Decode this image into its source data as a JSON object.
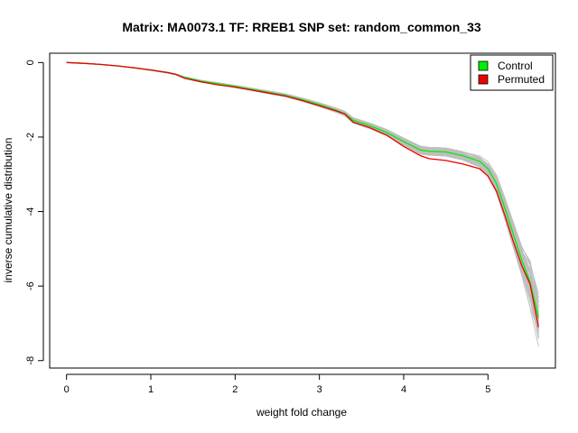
{
  "chart_data": {
    "type": "line",
    "title": "Matrix: MA0073.1 TF: RREB1 SNP set: random_common_33",
    "xlabel": "weight fold change",
    "ylabel": "inverse cumulative distribution",
    "xlim": [
      -0.2,
      5.8
    ],
    "ylim": [
      -8.2,
      0.25
    ],
    "x_ticks": [
      0,
      1,
      2,
      3,
      4,
      5
    ],
    "y_ticks": [
      0,
      -2,
      -4,
      -6,
      -8
    ],
    "grid": false,
    "legend_position": "top-right",
    "colors": {
      "control": "#00ee00",
      "permuted": "#ee0000",
      "background": "#bebebe"
    },
    "legend": [
      {
        "label": "Control",
        "color": "#00ee00"
      },
      {
        "label": "Permuted",
        "color": "#ee0000"
      }
    ],
    "series": [
      {
        "name": "Control",
        "color": "#00ee00",
        "x": [
          0,
          0.2,
          0.4,
          0.6,
          0.8,
          1.0,
          1.2,
          1.3,
          1.4,
          1.6,
          1.8,
          2.0,
          2.2,
          2.4,
          2.6,
          2.8,
          3.0,
          3.2,
          3.3,
          3.4,
          3.6,
          3.8,
          4.0,
          4.2,
          4.3,
          4.5,
          4.7,
          4.9,
          5.0,
          5.1,
          5.2,
          5.3,
          5.4,
          5.5,
          5.6
        ],
        "y": [
          0,
          -0.02,
          -0.05,
          -0.09,
          -0.14,
          -0.2,
          -0.27,
          -0.32,
          -0.4,
          -0.5,
          -0.57,
          -0.64,
          -0.72,
          -0.8,
          -0.88,
          -1.0,
          -1.13,
          -1.28,
          -1.37,
          -1.55,
          -1.7,
          -1.88,
          -2.12,
          -2.35,
          -2.38,
          -2.4,
          -2.5,
          -2.65,
          -2.85,
          -3.25,
          -3.9,
          -4.6,
          -5.3,
          -5.9,
          -6.85
        ]
      },
      {
        "name": "Permuted",
        "color": "#ee0000",
        "x": [
          0,
          0.2,
          0.4,
          0.6,
          0.8,
          1.0,
          1.2,
          1.3,
          1.4,
          1.6,
          1.8,
          2.0,
          2.2,
          2.4,
          2.6,
          2.8,
          3.0,
          3.2,
          3.3,
          3.4,
          3.6,
          3.8,
          4.0,
          4.2,
          4.3,
          4.5,
          4.7,
          4.9,
          5.0,
          5.1,
          5.2,
          5.3,
          5.4,
          5.5,
          5.6
        ],
        "y": [
          0,
          -0.02,
          -0.05,
          -0.09,
          -0.14,
          -0.2,
          -0.27,
          -0.32,
          -0.42,
          -0.52,
          -0.6,
          -0.66,
          -0.74,
          -0.82,
          -0.9,
          -1.02,
          -1.16,
          -1.3,
          -1.38,
          -1.6,
          -1.75,
          -1.95,
          -2.25,
          -2.5,
          -2.58,
          -2.63,
          -2.72,
          -2.85,
          -3.05,
          -3.45,
          -4.1,
          -4.8,
          -5.45,
          -5.95,
          -7.1
        ]
      }
    ]
  }
}
